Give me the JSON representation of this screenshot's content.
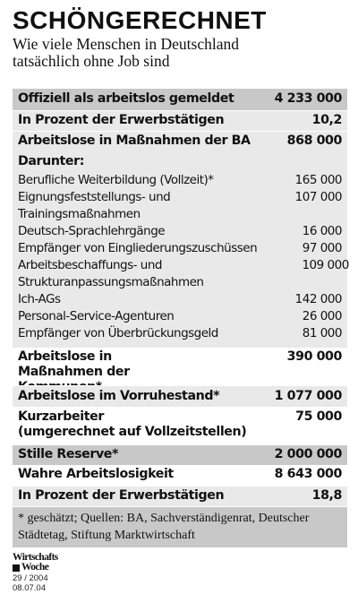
{
  "header": {
    "title": "SCHÖNGERECHNET",
    "subtitle_line1": "Wie viele Menschen in Deutschland",
    "subtitle_line2": "tatsächlich ohne Job sind"
  },
  "table": {
    "official_label": "Offiziell als arbeitslos gemeldet",
    "official_value": "4 233 000",
    "pct1_label": "In Prozent der Erwerbstätigen",
    "pct1_value": "10,2",
    "ba_label": "Arbeitslose in Maßnahmen der BA",
    "ba_value": "868 000",
    "darunter_label": "Darunter:",
    "sub_items": [
      {
        "label": "Berufliche Weiterbildung (Vollzeit)*",
        "value": "165 000"
      },
      {
        "label": "Eignungsfeststellungs- und Trainingsmaßnahmen",
        "value": "107 000"
      },
      {
        "label": "Deutsch-Sprachlehrgänge",
        "value": "16 000"
      },
      {
        "label": "Empfänger von Eingliederungszuschüssen",
        "value": "97 000"
      },
      {
        "label": "Arbeitsbeschaffungs- und Strukturanpassungsmaßnahmen",
        "value": "109 000"
      },
      {
        "label": "Ich-AGs",
        "value": "142 000"
      },
      {
        "label": "Personal-Service-Agenturen",
        "value": "26 000"
      },
      {
        "label": "Empfänger von Überbrückungsgeld",
        "value": "81 000"
      }
    ],
    "kommunen_label": "Arbeitslose in Maßnahmen der Kommunen*",
    "kommunen_value": "390 000",
    "vorruhestand_label": "Arbeitslose im Vorruhestand*",
    "vorruhestand_value": "1 077 000",
    "kurzarbeiter_label_line1": "Kurzarbeiter",
    "kurzarbeiter_label_line2": "(umgerechnet auf Vollzeitstellen)",
    "kurzarbeiter_value": "75 000",
    "reserve_label": "Stille Reserve*",
    "reserve_value": "2 000 000",
    "wahre_label": "Wahre Arbeitslosigkeit",
    "wahre_value": "8 643 000",
    "pct2_label": "In Prozent der Erwerbstätigen",
    "pct2_value": "18,8"
  },
  "footnote": "* geschätzt; Quellen: BA, Sachverständigenrat, Deutscher Städtetag, Stiftung Marktwirtschaft",
  "source": {
    "logo_line1": "Wirtschafts",
    "logo_line2": "Woche",
    "issue": "29 / 2004",
    "date": "08.07.04"
  }
}
